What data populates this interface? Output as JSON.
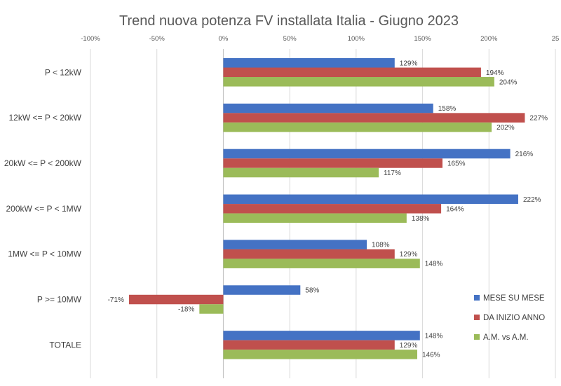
{
  "chart_data": {
    "type": "bar",
    "orientation": "horizontal",
    "title": "Trend nuova potenza FV installata Italia - Giugno 2023",
    "xlim": [
      -100,
      250
    ],
    "x_ticks": [
      "-100%",
      "-50%",
      "0%",
      "50%",
      "100%",
      "150%",
      "200%",
      "25"
    ],
    "grid": true,
    "legend_position": "right",
    "categories": [
      "P < 12kW",
      "12kW <= P < 20kW",
      "20kW <= P < 200kW",
      "200kW <= P < 1MW",
      "1MW <= P < 10MW",
      "P >= 10MW",
      "TOTALE"
    ],
    "series": [
      {
        "name": "MESE SU  MESE",
        "color": "#4472c4",
        "values": [
          129,
          158,
          216,
          222,
          108,
          58,
          148
        ],
        "labels": [
          "129%",
          "158%",
          "216%",
          "222%",
          "108%",
          "58%",
          "148%"
        ]
      },
      {
        "name": "DA INIZIO ANNO",
        "color": "#c0504d",
        "values": [
          194,
          227,
          165,
          164,
          129,
          -71,
          129
        ],
        "labels": [
          "194%",
          "227%",
          "165%",
          "164%",
          "129%",
          "-71%",
          "129%"
        ]
      },
      {
        "name": "A.M. vs A.M.",
        "color": "#9bbb59",
        "values": [
          204,
          202,
          117,
          138,
          148,
          -18,
          146
        ],
        "labels": [
          "204%",
          "202%",
          "117%",
          "138%",
          "148%",
          "-18%",
          "146%"
        ]
      }
    ]
  }
}
